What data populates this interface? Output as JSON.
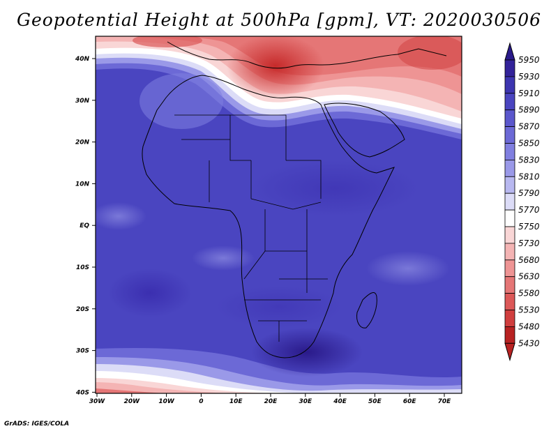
{
  "title": "Geopotential Height at 500hPa [gpm], VT: 2020030506",
  "credit": "GrADS: IGES/COLA",
  "map": {
    "lat_labels": [
      "40N",
      "30N",
      "20N",
      "10N",
      "EQ",
      "10S",
      "20S",
      "30S",
      "40S"
    ],
    "lon_labels": [
      "30W",
      "20W",
      "10W",
      "0",
      "10E",
      "20E",
      "30E",
      "40E",
      "50E",
      "60E",
      "70E"
    ]
  },
  "colorbar": {
    "levels": [
      "5950",
      "5930",
      "5910",
      "5890",
      "5870",
      "5850",
      "5830",
      "5810",
      "5790",
      "5770",
      "5750",
      "5730",
      "5680",
      "5630",
      "5580",
      "5530",
      "5480",
      "5430"
    ],
    "colors": [
      "#2a1a8a",
      "#33239a",
      "#3d35b0",
      "#4a45c0",
      "#5b57cc",
      "#6c69d6",
      "#807fe0",
      "#9a99e8",
      "#b8b8f0",
      "#dcdcf7",
      "#ffffff",
      "#f9d6d6",
      "#f4b4b4",
      "#ee9494",
      "#e57676",
      "#dc5858",
      "#d03e3e",
      "#b82222"
    ]
  }
}
